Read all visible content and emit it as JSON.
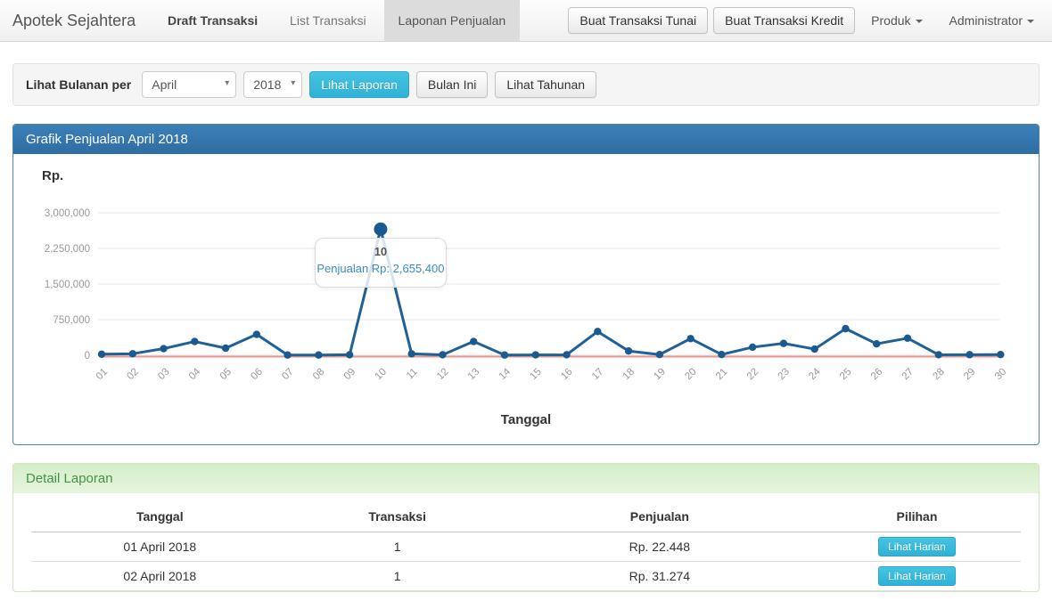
{
  "navbar": {
    "brand": "Apotek Sejahtera",
    "items": [
      {
        "label": "Draft Transaksi",
        "active": false,
        "emphasis": true
      },
      {
        "label": "List Transaksi",
        "active": false,
        "emphasis": false
      },
      {
        "label": "Laponan Penjualan",
        "active": true,
        "emphasis": false
      }
    ],
    "buttons": {
      "tunai": "Buat Transaksi Tunai",
      "kredit": "Buat Transaksi Kredit"
    },
    "dropdowns": {
      "produk": "Produk",
      "user": "Administrator"
    }
  },
  "filter": {
    "label": "Lihat Bulanan per",
    "month_value": "April",
    "year_value": "2018",
    "submit_label": "Lihat Laporan",
    "this_month_label": "Bulan Ini",
    "yearly_label": "Lihat Tahunan"
  },
  "chart_panel": {
    "title": "Grafik Penjualan April 2018",
    "y_axis_title": "Rp.",
    "x_axis_title": "Tanggal"
  },
  "chart_data": {
    "type": "line",
    "title": "Grafik Penjualan April 2018",
    "xlabel": "Tanggal",
    "ylabel": "Rp.",
    "categories": [
      "01",
      "02",
      "03",
      "04",
      "05",
      "06",
      "07",
      "08",
      "09",
      "10",
      "11",
      "12",
      "13",
      "14",
      "15",
      "16",
      "17",
      "18",
      "19",
      "20",
      "21",
      "22",
      "23",
      "24",
      "25",
      "26",
      "27",
      "28",
      "29",
      "30"
    ],
    "series": [
      {
        "name": "Penjualan",
        "color": "#1f6096",
        "point_color": "#1a5a91",
        "values": [
          22448,
          31274,
          140000,
          290000,
          150000,
          440000,
          5000,
          5000,
          10000,
          2655400,
          30000,
          10000,
          290000,
          5000,
          8000,
          10000,
          500000,
          90000,
          15000,
          350000,
          15000,
          170000,
          250000,
          130000,
          560000,
          240000,
          360000,
          10000,
          12000,
          15000
        ]
      }
    ],
    "zero_line_color": "#e8968e",
    "grid": true,
    "grid_color": "#e5e5e5",
    "tick_color": "#999999",
    "ylim": [
      0,
      3000000
    ],
    "yticks": [
      {
        "value": 0,
        "label": "0"
      },
      {
        "value": 750000,
        "label": "750,000"
      },
      {
        "value": 1500000,
        "label": "1,500,000"
      },
      {
        "value": 2250000,
        "label": "2,250,000"
      },
      {
        "value": 3000000,
        "label": "3,000,000"
      }
    ],
    "highlight": {
      "index": 9,
      "day_label": "10",
      "value": 2655400,
      "tooltip_text": "Penjualan Rp: 2,655,400"
    }
  },
  "detail": {
    "title": "Detail Laporan",
    "columns": [
      "Tanggal",
      "Transaksi",
      "Penjualan",
      "Pilihan"
    ],
    "action_label": "Lihat Harian",
    "rows": [
      {
        "tanggal": "01 April 2018",
        "transaksi": "1",
        "penjualan": "Rp. 22.448"
      },
      {
        "tanggal": "02 April 2018",
        "transaksi": "1",
        "penjualan": "Rp. 31.274"
      }
    ]
  },
  "colors": {
    "accent_teal": "#2fb2d6",
    "panel_primary": "#2e6da4",
    "panel_success_text": "#459245",
    "line_series": "#1f6096",
    "zero_line": "#e8968e",
    "tooltip_value_text": "#3a8bc2"
  }
}
